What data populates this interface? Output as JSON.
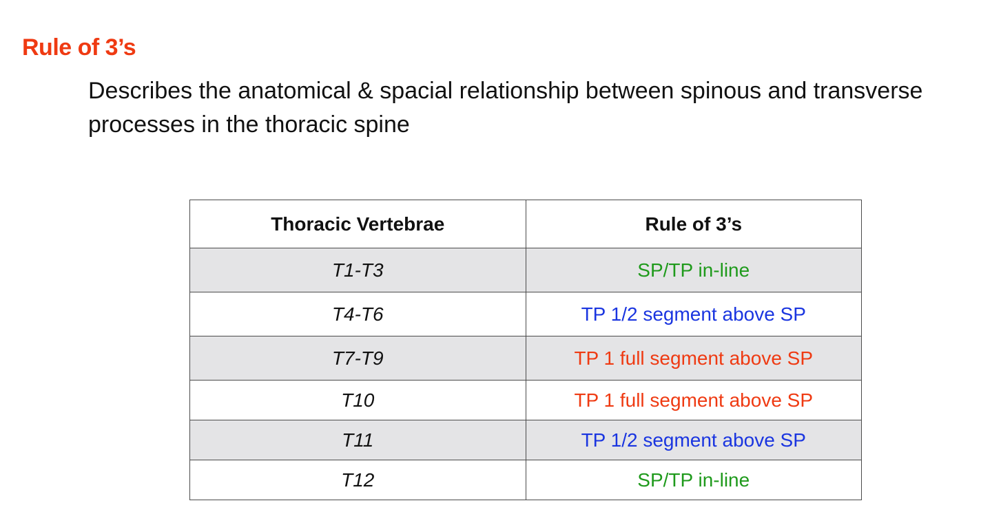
{
  "title": "Rule of 3’s",
  "description": "Describes the anatomical & spacial relationship between spinous and transverse processes in the thoracic spine",
  "colors": {
    "title": "#ef3a12",
    "green": "#1f9a1c",
    "blue": "#1a35e0",
    "red": "#ef3a12",
    "shaded_row": "#e4e4e6"
  },
  "table": {
    "headers": [
      "Thoracic Vertebrae",
      "Rule of 3’s"
    ],
    "rows": [
      {
        "vertebrae": "T1-T3",
        "rule": "SP/TP in-line",
        "color": "#1f9a1c"
      },
      {
        "vertebrae": "T4-T6",
        "rule": "TP 1/2 segment above SP",
        "color": "#1a35e0"
      },
      {
        "vertebrae": "T7-T9",
        "rule": "TP 1 full segment above SP",
        "color": "#ef3a12"
      },
      {
        "vertebrae": "T10",
        "rule": "TP 1 full segment above SP",
        "color": "#ef3a12"
      },
      {
        "vertebrae": "T11",
        "rule": "TP 1/2 segment above SP",
        "color": "#1a35e0"
      },
      {
        "vertebrae": "T12",
        "rule": "SP/TP in-line",
        "color": "#1f9a1c"
      }
    ]
  }
}
